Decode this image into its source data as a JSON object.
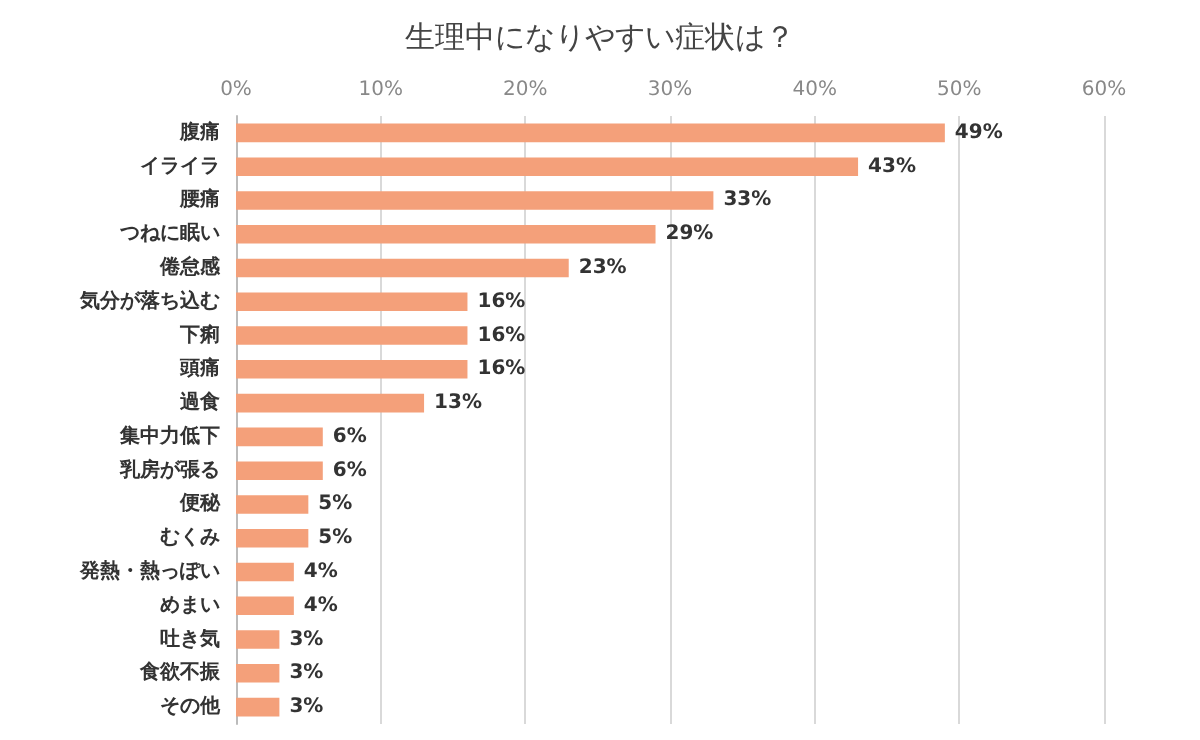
{
  "chart_data": {
    "type": "bar",
    "orientation": "horizontal",
    "title": "生理中になりやすい症状は？",
    "categories": [
      "腹痛",
      "イライラ",
      "腰痛",
      "つねに眠い",
      "倦怠感",
      "気分が落ち込む",
      "下痢",
      "頭痛",
      "過食",
      "集中力低下",
      "乳房が張る",
      "便秘",
      "むくみ",
      "発熱・熱っぽい",
      "めまい",
      "吐き気",
      "食欲不振",
      "その他"
    ],
    "values": [
      49,
      43,
      33,
      29,
      23,
      16,
      16,
      16,
      13,
      6,
      6,
      5,
      5,
      4,
      4,
      3,
      3,
      3
    ],
    "value_labels": [
      "49%",
      "43%",
      "33%",
      "29%",
      "23%",
      "16%",
      "16%",
      "16%",
      "13%",
      "6%",
      "6%",
      "5%",
      "5%",
      "4%",
      "4%",
      "3%",
      "3%",
      "3%"
    ],
    "color": "#f4a07a",
    "xlim": [
      0,
      60
    ],
    "xticks": [
      {
        "value": 0,
        "label": "0%"
      },
      {
        "value": 10,
        "label": "10%"
      },
      {
        "value": 20,
        "label": "20%"
      },
      {
        "value": 30,
        "label": "30%"
      },
      {
        "value": 40,
        "label": "40%"
      },
      {
        "value": 50,
        "label": "50%"
      },
      {
        "value": 60,
        "label": "60%"
      }
    ],
    "grid": "x"
  }
}
